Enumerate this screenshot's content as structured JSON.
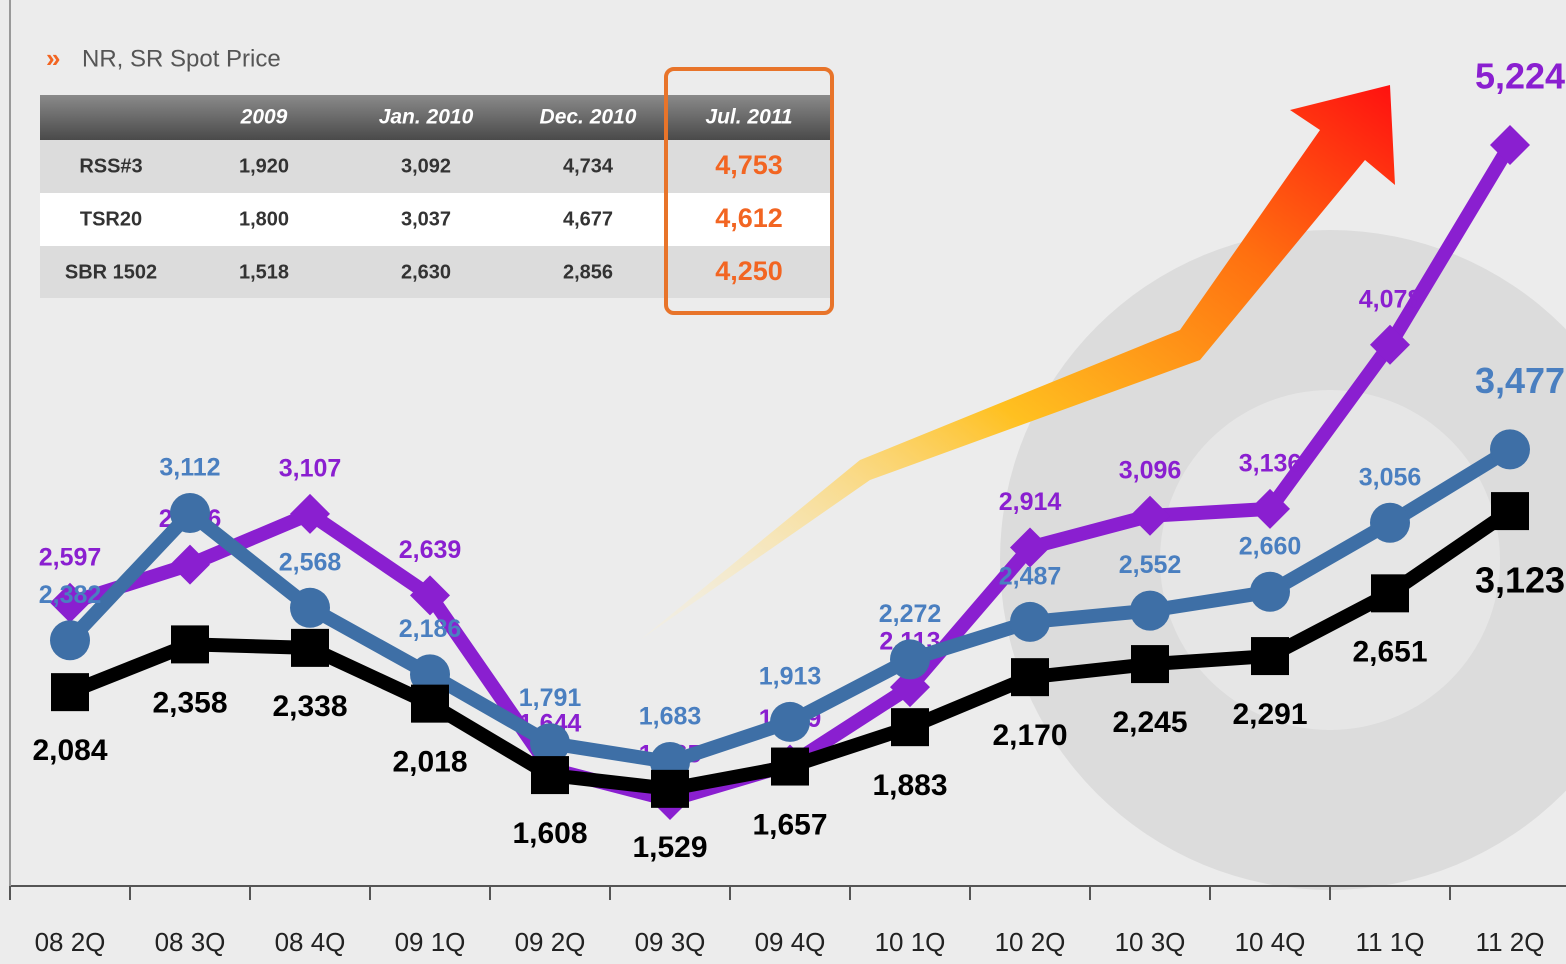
{
  "table": {
    "title": "NR, SR Spot Price",
    "columns": [
      "2009",
      "Jan. 2010",
      "Dec. 2010",
      "Jul. 2011"
    ],
    "rows": [
      {
        "name": "RSS#3",
        "values": [
          "1,920",
          "3,092",
          "4,734",
          "4,753"
        ]
      },
      {
        "name": "TSR20",
        "values": [
          "1,800",
          "3,037",
          "4,677",
          "4,612"
        ]
      },
      {
        "name": "SBR 1502",
        "values": [
          "1,518",
          "2,630",
          "2,856",
          "4,250"
        ]
      }
    ]
  },
  "chart_data": {
    "type": "line",
    "categories": [
      "08 2Q",
      "08 3Q",
      "08 4Q",
      "09 1Q",
      "09 2Q",
      "09 3Q",
      "09 4Q",
      "10 1Q",
      "10 2Q",
      "10 3Q",
      "10 4Q",
      "11 1Q",
      "11 2Q"
    ],
    "series": [
      {
        "color": "#8a1fd0",
        "marker": "diamond",
        "values": [
          2597,
          2816,
          3107,
          2639,
          1644,
          1465,
          1669,
          2113,
          2914,
          3096,
          3136,
          4078,
          5224
        ],
        "value_labels": [
          "2,597",
          "2,816",
          "3,107",
          "2,639",
          "1,644",
          "1,465",
          "1,669",
          "2,113",
          "2,914",
          "3,096",
          "3,136",
          "4,078",
          "5,224"
        ]
      },
      {
        "color": "#3e6fa6",
        "marker": "circle",
        "values": [
          2382,
          3112,
          2568,
          2186,
          1791,
          1683,
          1913,
          2272,
          2487,
          2552,
          2660,
          3056,
          3477
        ],
        "value_labels": [
          "2,382",
          "3,112",
          "2,568",
          "2,186",
          "1,791",
          "1,683",
          "1,913",
          "2,272",
          "2,487",
          "2,552",
          "2,660",
          "3,056",
          "3,477"
        ]
      },
      {
        "color": "#000000",
        "marker": "square",
        "values": [
          2084,
          2358,
          2338,
          2018,
          1608,
          1529,
          1657,
          1883,
          2170,
          2245,
          2291,
          2651,
          3123
        ],
        "value_labels": [
          "2,084",
          "2,358",
          "2,338",
          "2,018",
          "1,608",
          "1,529",
          "1,657",
          "1,883",
          "2,170",
          "2,245",
          "2,291",
          "2,651",
          "3,123"
        ]
      }
    ]
  }
}
